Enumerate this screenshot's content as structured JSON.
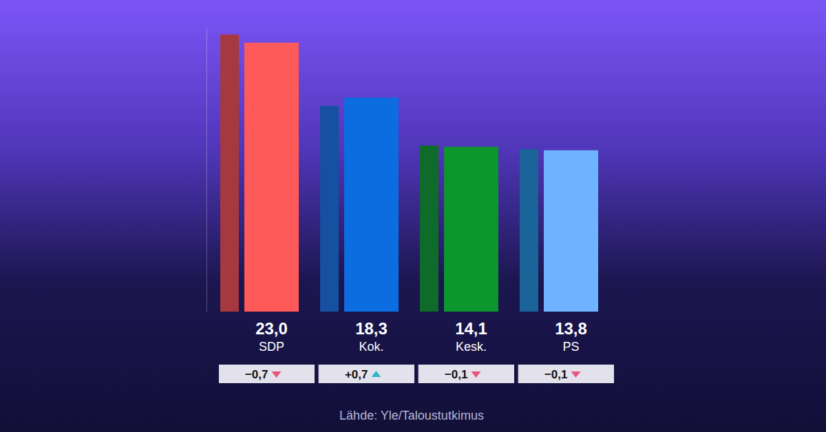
{
  "chart_data": {
    "type": "bar",
    "categories": [
      "SDP",
      "Kok.",
      "Kesk.",
      "PS"
    ],
    "series": [
      {
        "colors": [
          "#a5393f",
          "#1650a0",
          "#0e6b2a",
          "#1a6499"
        ],
        "values": [
          23.7,
          17.6,
          14.2,
          13.9
        ]
      },
      {
        "colors": [
          "#ff5a5a",
          "#0b6de0",
          "#0c962e",
          "#6db3ff"
        ],
        "values": [
          23.0,
          18.3,
          14.1,
          13.8
        ],
        "value_labels": [
          "23,0",
          "18,3",
          "14,1",
          "13,8"
        ]
      }
    ],
    "changes": [
      -0.7,
      0.7,
      -0.1,
      -0.1
    ],
    "change_labels": [
      "−0,7",
      "+0,7",
      "−0,1",
      "−0,1"
    ],
    "source": "Lähde: Yle/Taloustutkimus",
    "ylim": [
      0,
      24.3
    ],
    "yticks": [],
    "data_labels": true,
    "tick_labels": false,
    "grid": false
  }
}
